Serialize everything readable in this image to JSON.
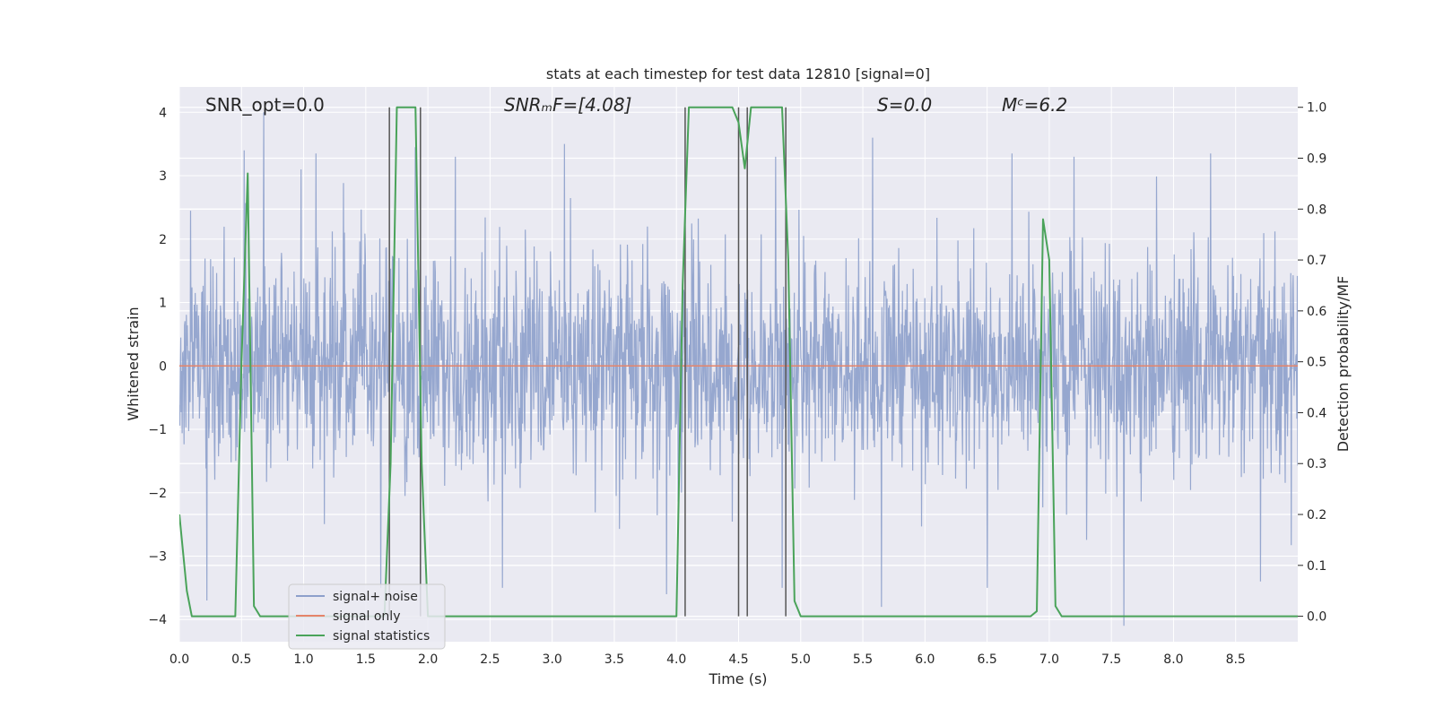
{
  "chart_data": {
    "type": "line",
    "title": "stats at each timestep for test data 12810 [signal=0]",
    "xlabel": "Time (s)",
    "ylabel_left": "Whitened strain",
    "ylabel_right": "Detection probability/MF",
    "xlim": [
      0,
      9
    ],
    "ylim_left": [
      -4.35,
      4.4
    ],
    "ylim_right": [
      -0.05,
      1.04
    ],
    "x_ticks": [
      0.0,
      0.5,
      1.0,
      1.5,
      2.0,
      2.5,
      3.0,
      3.5,
      4.0,
      4.5,
      5.0,
      5.5,
      6.0,
      6.5,
      7.0,
      7.5,
      8.0,
      8.5
    ],
    "x_tick_labels": [
      "0.0",
      "0.5",
      "1.0",
      "1.5",
      "2.0",
      "2.5",
      "3.0",
      "3.5",
      "4.0",
      "4.5",
      "5.0",
      "5.5",
      "6.0",
      "6.5",
      "7.0",
      "7.5",
      "8.0",
      "8.5"
    ],
    "y_ticks_left": [
      -4,
      -3,
      -2,
      -1,
      0,
      1,
      2,
      3,
      4
    ],
    "y_tick_labels_left": [
      "−4",
      "−3",
      "−2",
      "−1",
      "0",
      "1",
      "2",
      "3",
      "4"
    ],
    "y_ticks_right": [
      0.0,
      0.1,
      0.2,
      0.3,
      0.4,
      0.5,
      0.6,
      0.7,
      0.8,
      0.9,
      1.0
    ],
    "y_tick_labels_right": [
      "0.0",
      "0.1",
      "0.2",
      "0.3",
      "0.4",
      "0.5",
      "0.6",
      "0.7",
      "0.8",
      "0.9",
      "1.0"
    ],
    "grid": true,
    "legend_placement": "lower-left",
    "annotations": [
      {
        "id": "snr-opt",
        "text": "SNR_opt=0.0",
        "x": 0.2
      },
      {
        "id": "snr-mf",
        "text": "SNRₘF=[4.08]",
        "x": 2.6
      },
      {
        "id": "s-value",
        "text": "S=0.0",
        "x": 5.6
      },
      {
        "id": "mc-value",
        "text": "Mᶜ=6.2",
        "x": 6.6
      }
    ],
    "series": [
      {
        "name": "signal+ noise",
        "axis": "left",
        "color": "#8da0cb",
        "noise_std": 0.85,
        "peaks": [
          {
            "x": 0.52,
            "y": 3.4
          },
          {
            "x": 0.68,
            "y": 4.0
          },
          {
            "x": 0.98,
            "y": 3.1
          },
          {
            "x": 1.1,
            "y": 3.35
          },
          {
            "x": 1.9,
            "y": 3.45
          },
          {
            "x": 2.22,
            "y": 3.3
          },
          {
            "x": 3.1,
            "y": 3.5
          },
          {
            "x": 4.8,
            "y": 3.3
          },
          {
            "x": 5.58,
            "y": 3.6
          },
          {
            "x": 6.7,
            "y": 3.35
          },
          {
            "x": 7.2,
            "y": 3.3
          },
          {
            "x": 8.3,
            "y": 3.35
          },
          {
            "x": 0.22,
            "y": -3.7
          },
          {
            "x": 1.62,
            "y": -3.5
          },
          {
            "x": 2.6,
            "y": -3.5
          },
          {
            "x": 3.92,
            "y": -3.6
          },
          {
            "x": 4.85,
            "y": -3.5
          },
          {
            "x": 5.65,
            "y": -3.8
          },
          {
            "x": 6.5,
            "y": -3.5
          },
          {
            "x": 7.6,
            "y": -4.1
          },
          {
            "x": 8.7,
            "y": -3.4
          }
        ]
      },
      {
        "name": "signal only",
        "axis": "left",
        "color": "#e5846a",
        "x": [
          0,
          9
        ],
        "y": [
          0,
          0
        ]
      },
      {
        "name": "signal statistics",
        "axis": "right",
        "color": "#4aa35a",
        "x": [
          0.0,
          0.06,
          0.1,
          0.45,
          0.5,
          0.55,
          0.6,
          0.65,
          0.7,
          1.65,
          1.7,
          1.75,
          1.8,
          1.85,
          1.9,
          1.95,
          2.0,
          2.05,
          4.0,
          4.05,
          4.1,
          4.45,
          4.5,
          4.55,
          4.6,
          4.65,
          4.85,
          4.9,
          4.95,
          5.0,
          5.05,
          6.85,
          6.9,
          6.95,
          7.0,
          7.05,
          7.1,
          9.0
        ],
        "y": [
          0.2,
          0.05,
          0.0,
          0.0,
          0.5,
          0.87,
          0.02,
          0.0,
          0.0,
          0.0,
          0.3,
          1.0,
          1.0,
          1.0,
          1.0,
          0.3,
          0.0,
          0.0,
          0.0,
          0.65,
          1.0,
          1.0,
          0.97,
          0.88,
          1.0,
          1.0,
          1.0,
          0.7,
          0.03,
          0.0,
          0.0,
          0.0,
          0.01,
          0.78,
          0.7,
          0.02,
          0.0,
          0.0
        ]
      }
    ],
    "vertical_lines": [
      {
        "x": 1.69,
        "y_start": 0.0,
        "y_end": 1.0,
        "color": "#555555"
      },
      {
        "x": 1.94,
        "y_start": 0.0,
        "y_end": 1.0,
        "color": "#555555"
      },
      {
        "x": 4.07,
        "y_start": 0.0,
        "y_end": 1.0,
        "color": "#555555"
      },
      {
        "x": 4.5,
        "y_start": 0.0,
        "y_end": 1.0,
        "color": "#555555"
      },
      {
        "x": 4.57,
        "y_start": 0.0,
        "y_end": 1.0,
        "color": "#555555"
      },
      {
        "x": 4.88,
        "y_start": 0.0,
        "y_end": 1.0,
        "color": "#555555"
      }
    ],
    "background_color": "#eaeaf2",
    "grid_color": "#ffffff"
  }
}
